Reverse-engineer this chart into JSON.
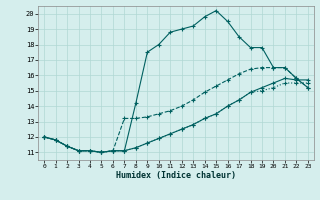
{
  "title": "",
  "xlabel": "Humidex (Indice chaleur)",
  "xlim": [
    -0.5,
    23.5
  ],
  "ylim": [
    10.5,
    20.5
  ],
  "xticks": [
    0,
    1,
    2,
    3,
    4,
    5,
    6,
    7,
    8,
    9,
    10,
    11,
    12,
    13,
    14,
    15,
    16,
    17,
    18,
    19,
    20,
    21,
    22,
    23
  ],
  "yticks": [
    11,
    12,
    13,
    14,
    15,
    16,
    17,
    18,
    19,
    20
  ],
  "bg_color": "#d5eeed",
  "line_color": "#006060",
  "grid_color": "#b0d8d4",
  "series": [
    [
      12.0,
      11.8,
      11.4,
      11.1,
      11.1,
      11.0,
      11.1,
      11.1,
      14.2,
      17.5,
      18.0,
      18.8,
      19.0,
      19.2,
      19.8,
      20.2,
      19.5,
      18.5,
      17.8,
      17.8,
      16.5,
      16.5,
      15.8,
      15.2
    ],
    [
      12.0,
      11.8,
      11.4,
      11.1,
      11.1,
      11.0,
      11.1,
      13.2,
      13.2,
      13.3,
      13.5,
      13.7,
      14.0,
      14.4,
      14.9,
      15.3,
      15.7,
      16.1,
      16.4,
      16.5,
      16.5,
      16.5,
      15.8,
      15.2
    ],
    [
      12.0,
      11.8,
      11.4,
      11.1,
      11.1,
      11.0,
      11.1,
      11.1,
      11.3,
      11.6,
      11.9,
      12.2,
      12.5,
      12.8,
      13.2,
      13.5,
      14.0,
      14.4,
      14.9,
      15.2,
      15.5,
      15.8,
      15.7,
      15.7
    ],
    [
      12.0,
      11.8,
      11.4,
      11.1,
      11.1,
      11.0,
      11.1,
      11.1,
      11.3,
      11.6,
      11.9,
      12.2,
      12.5,
      12.8,
      13.2,
      13.5,
      14.0,
      14.4,
      14.9,
      15.0,
      15.2,
      15.5,
      15.5,
      15.5
    ]
  ],
  "linestyles": [
    "-",
    "--",
    "-",
    ":"
  ],
  "linewidths": [
    0.8,
    0.8,
    0.8,
    0.8
  ]
}
